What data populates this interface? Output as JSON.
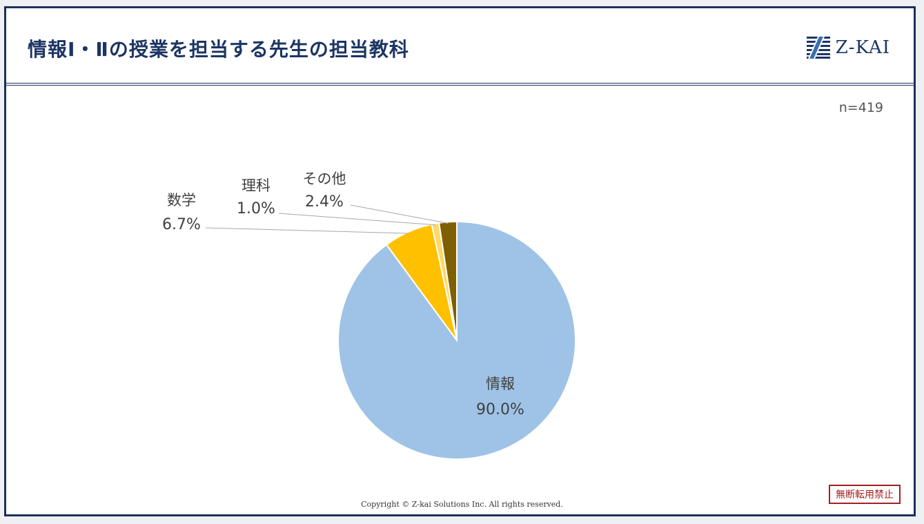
{
  "header": {
    "title": "情報Ⅰ・Ⅱの授業を担当する先生の担当教科",
    "logo_text": "Z-KAI"
  },
  "sample_size": "n=419",
  "footer": {
    "copyright": "Copyright © Z-kai Solutions Inc. All rights reserved.",
    "badge": "無断転用禁止"
  },
  "colors": {
    "navy": "#1c3564",
    "badge_red": "#a52022"
  },
  "icons": {
    "logo_mark": "zkai-logo-icon"
  },
  "chart_data": {
    "type": "pie",
    "start_angle": "12 o'clock, clockwise",
    "slices": [
      {
        "label": "情報",
        "value": 90.0,
        "value_label": "90.0%",
        "color": "#9fc3e6"
      },
      {
        "label": "数学",
        "value": 6.7,
        "value_label": "6.7%",
        "color": "#ffc000"
      },
      {
        "label": "理科",
        "value": 1.0,
        "value_label": "1.0%",
        "color": "#ffd966"
      },
      {
        "label": "その他",
        "value": 2.4,
        "value_label": "2.4%",
        "color": "#7f6000"
      }
    ]
  }
}
